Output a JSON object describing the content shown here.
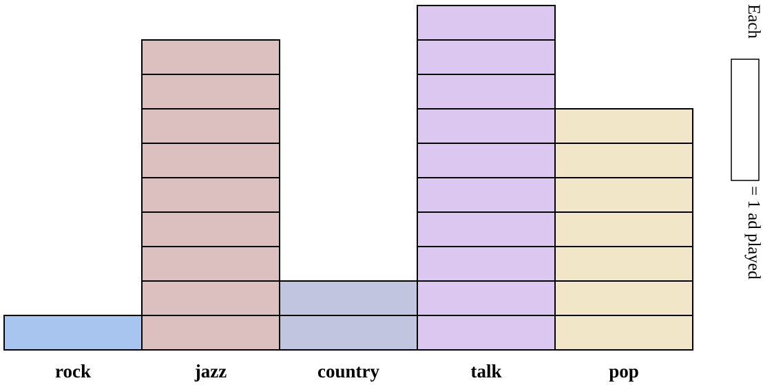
{
  "chart_data": {
    "type": "bar",
    "categories": [
      "rock",
      "jazz",
      "country",
      "talk",
      "pop"
    ],
    "values": [
      1,
      9,
      2,
      10,
      7
    ],
    "colors": [
      "#a7c5ee",
      "#dcc0c0",
      "#c1c5e0",
      "#dcc7f1",
      "#f1e6c8"
    ],
    "unit_box_color": "#ffffff",
    "legend": {
      "prefix": "Each",
      "suffix": "= 1 ad played"
    }
  }
}
